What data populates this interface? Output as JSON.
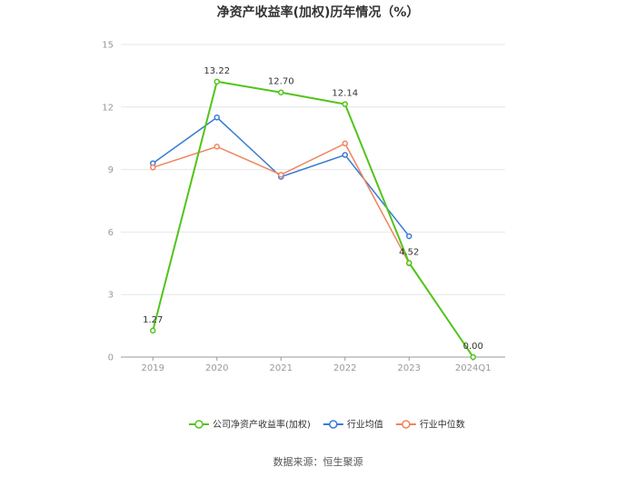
{
  "title": "净资产收益率(加权)历年情况（%）",
  "source": "数据来源：恒生聚源",
  "chart_data": {
    "type": "line",
    "title": "净资产收益率(加权)历年情况（%）",
    "categories": [
      "2019",
      "2020",
      "2021",
      "2022",
      "2023",
      "2024Q1"
    ],
    "ylim": [
      0,
      15
    ],
    "yticks": [
      0,
      3,
      6,
      9,
      12,
      15
    ],
    "grid": true,
    "legend_position": "bottom",
    "series": [
      {
        "name": "公司净资产收益率(加权)",
        "color": "#52c41a",
        "values": [
          1.27,
          13.22,
          12.7,
          12.14,
          4.52,
          0.0
        ],
        "labels": [
          "1.27",
          "13.22",
          "12.70",
          "12.14",
          "4.52",
          "0.00"
        ]
      },
      {
        "name": "行业均值",
        "color": "#3a7bd5",
        "values": [
          9.3,
          11.5,
          8.65,
          9.7,
          5.8,
          null
        ]
      },
      {
        "name": "行业中位数",
        "color": "#f0845c",
        "values": [
          9.1,
          10.1,
          8.75,
          10.25,
          4.5,
          null
        ]
      }
    ]
  }
}
